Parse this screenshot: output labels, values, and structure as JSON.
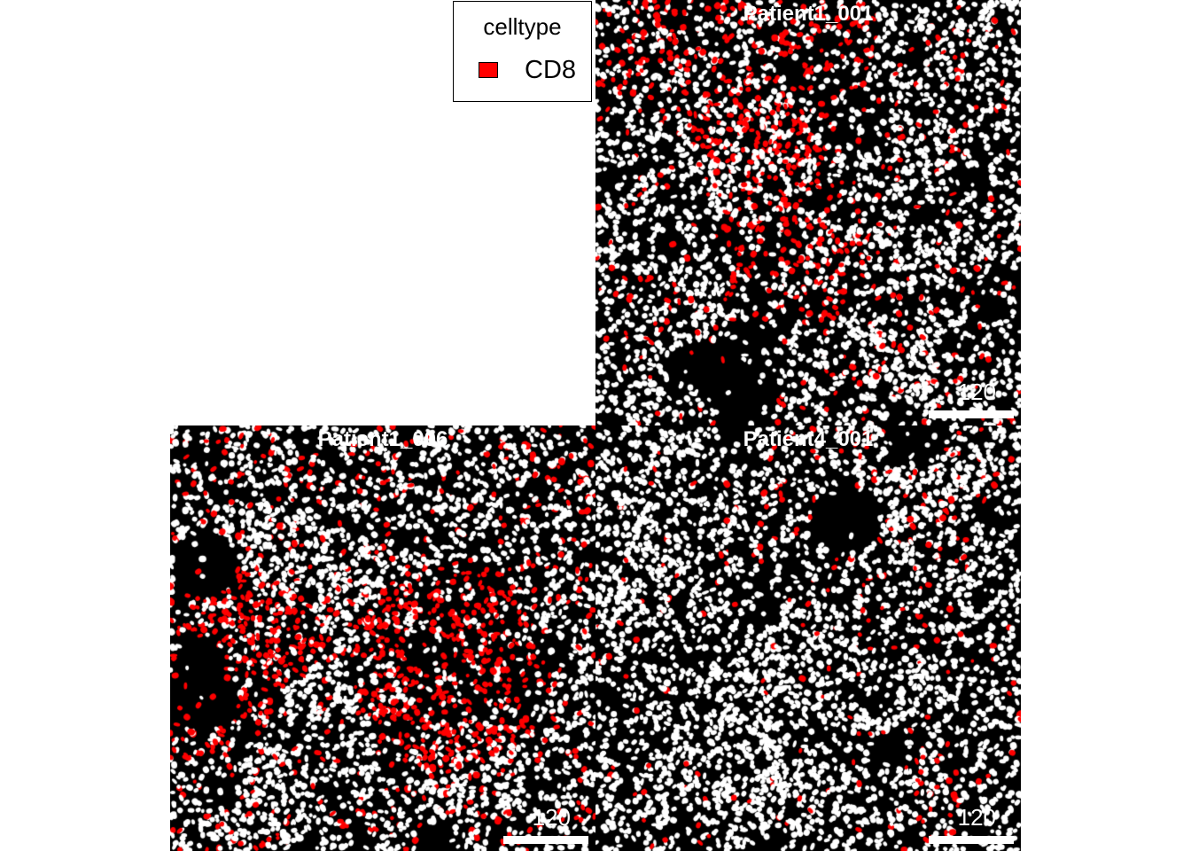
{
  "panels": [
    {
      "id": "top-right",
      "title": "Patient1_001",
      "scale_label": "120",
      "cd8_density": 0.3,
      "seed": 11
    },
    {
      "id": "bottom-left",
      "title": "Patient1_006",
      "scale_label": "120",
      "cd8_density": 0.42,
      "seed": 23
    },
    {
      "id": "bottom-right",
      "title": "Patient4_001",
      "scale_label": "120",
      "cd8_density": 0.1,
      "seed": 37
    }
  ],
  "legend": {
    "title": "celltype",
    "entries": [
      {
        "label": "CD8",
        "color": "#ff0000"
      }
    ]
  },
  "colors": {
    "background": "#000000",
    "cell": "#ffffff",
    "cd8": "#ff0000"
  }
}
